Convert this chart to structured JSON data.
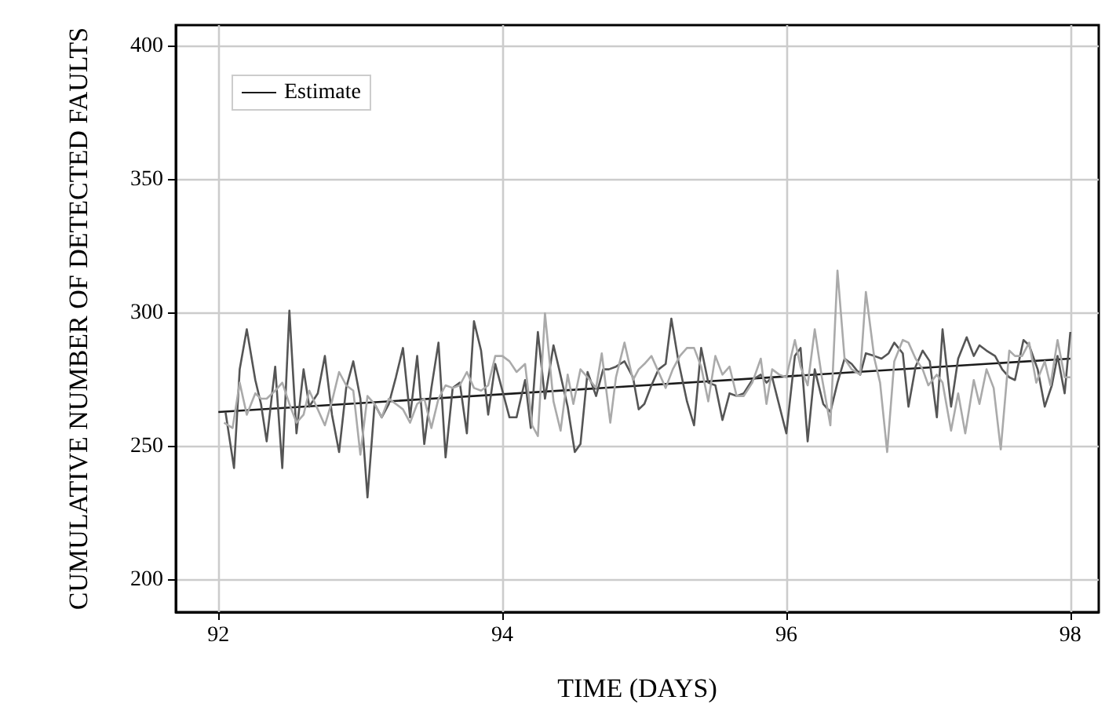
{
  "chart_data": {
    "type": "line",
    "xlabel": "TIME (DAYS)",
    "ylabel": "CUMULATIVE NUMBER OF DETECTED FAULTS",
    "xlim": [
      91.7,
      98.2
    ],
    "xticks": [
      92,
      94,
      96,
      98
    ],
    "ylim": [
      188,
      408
    ],
    "yticks": [
      200,
      250,
      300,
      350,
      400
    ],
    "grid": true,
    "legend": "top left",
    "line_style": "solid",
    "marker": "none",
    "series": [
      {
        "name": "Estimate",
        "color": "#1a1a1a",
        "x": [
          92,
          98
        ],
        "values": [
          263,
          283
        ]
      },
      {
        "color": "#555555",
        "x": [
          92.05,
          92.11,
          92.15,
          92.2,
          92.26,
          92.3,
          92.34,
          92.4,
          92.45,
          92.5,
          92.55,
          92.6,
          92.64,
          92.7,
          92.75,
          92.8,
          92.85,
          92.9,
          92.95,
          93.0,
          93.05,
          93.1,
          93.15,
          93.2,
          93.25,
          93.3,
          93.35,
          93.4,
          93.45,
          93.5,
          93.55,
          93.6,
          93.65,
          93.7,
          93.75,
          93.8,
          93.85,
          93.9,
          93.95,
          94.05,
          94.1,
          94.16,
          94.2,
          94.25,
          94.3,
          94.36,
          94.4,
          94.46,
          94.51,
          94.55,
          94.6,
          94.66,
          94.71,
          94.75,
          94.8,
          94.86,
          94.92,
          94.96,
          95.0,
          95.05,
          95.1,
          95.15,
          95.19,
          95.24,
          95.3,
          95.35,
          95.4,
          95.45,
          95.5,
          95.55,
          95.6,
          95.65,
          95.7,
          95.76,
          95.82,
          95.86,
          95.9,
          96.0,
          96.06,
          96.1,
          96.15,
          96.2,
          96.26,
          96.31,
          96.36,
          96.41,
          96.46,
          96.52,
          96.56,
          96.62,
          96.67,
          96.72,
          96.76,
          96.82,
          96.86,
          96.91,
          96.96,
          97.01,
          97.06,
          97.1,
          97.16,
          97.21,
          97.27,
          97.32,
          97.36,
          97.41,
          97.47,
          97.52,
          97.57,
          97.61,
          97.67,
          97.71,
          97.77,
          97.82,
          97.87,
          97.91,
          97.96,
          98.0
        ],
        "values": [
          263,
          242,
          279,
          294,
          275,
          266,
          252,
          280,
          242,
          301,
          255,
          279,
          265,
          270,
          284,
          262,
          248,
          272,
          282,
          268,
          231,
          266,
          261,
          266,
          276,
          287,
          261,
          284,
          251,
          272,
          289,
          246,
          272,
          274,
          255,
          297,
          286,
          262,
          281,
          261,
          261,
          275,
          257,
          293,
          268,
          288,
          279,
          265,
          248,
          251,
          278,
          269,
          279,
          279,
          280,
          282,
          276,
          264,
          266,
          273,
          279,
          281,
          298,
          282,
          267,
          258,
          287,
          274,
          273,
          260,
          270,
          269,
          270,
          275,
          277,
          274,
          276,
          255,
          284,
          287,
          252,
          279,
          266,
          263,
          274,
          283,
          281,
          277,
          285,
          284,
          283,
          285,
          289,
          285,
          265,
          280,
          286,
          282,
          261,
          294,
          265,
          283,
          291,
          284,
          288,
          286,
          284,
          279,
          276,
          275,
          290,
          288,
          279,
          265,
          273,
          284,
          270,
          293
        ]
      },
      {
        "color": "#aaaaaa",
        "x": [
          92.04,
          92.1,
          92.15,
          92.2,
          92.26,
          92.3,
          92.34,
          92.4,
          92.45,
          92.5,
          92.55,
          92.6,
          92.64,
          92.7,
          92.75,
          92.8,
          92.85,
          92.9,
          92.95,
          93.0,
          93.05,
          93.1,
          93.15,
          93.2,
          93.25,
          93.3,
          93.35,
          93.4,
          93.45,
          93.5,
          93.55,
          93.6,
          93.65,
          93.7,
          93.75,
          93.8,
          93.85,
          93.9,
          93.95,
          94.0,
          94.05,
          94.1,
          94.16,
          94.21,
          94.25,
          94.3,
          94.36,
          94.41,
          94.46,
          94.5,
          94.55,
          94.6,
          94.66,
          94.7,
          94.76,
          94.8,
          94.86,
          94.92,
          94.96,
          95.0,
          95.05,
          95.1,
          95.15,
          95.2,
          95.25,
          95.3,
          95.35,
          95.4,
          95.45,
          95.5,
          95.55,
          95.6,
          95.65,
          95.7,
          95.76,
          95.82,
          95.86,
          95.9,
          95.95,
          96.0,
          96.06,
          96.1,
          96.15,
          96.2,
          96.25,
          96.31,
          96.36,
          96.41,
          96.46,
          96.52,
          96.56,
          96.62,
          96.66,
          96.71,
          96.76,
          96.82,
          96.86,
          96.91,
          96.96,
          97.0,
          97.06,
          97.1,
          97.16,
          97.21,
          97.26,
          97.32,
          97.36,
          97.41,
          97.46,
          97.51,
          97.57,
          97.61,
          97.66,
          97.71,
          97.76,
          97.82,
          97.86,
          97.91,
          97.96,
          98.0
        ],
        "values": [
          259,
          257,
          274,
          262,
          270,
          268,
          268,
          271,
          274,
          266,
          259,
          262,
          271,
          264,
          258,
          267,
          278,
          273,
          271,
          247,
          269,
          266,
          261,
          268,
          266,
          264,
          259,
          266,
          268,
          257,
          268,
          273,
          272,
          273,
          278,
          272,
          271,
          273,
          284,
          284,
          282,
          278,
          281,
          258,
          254,
          300,
          267,
          256,
          277,
          266,
          279,
          276,
          272,
          285,
          259,
          276,
          289,
          275,
          279,
          281,
          284,
          278,
          272,
          279,
          284,
          287,
          287,
          280,
          267,
          284,
          277,
          280,
          269,
          269,
          274,
          283,
          266,
          279,
          277,
          276,
          290,
          280,
          273,
          294,
          276,
          258,
          316,
          283,
          279,
          277,
          308,
          283,
          274,
          248,
          282,
          290,
          289,
          283,
          279,
          273,
          277,
          274,
          256,
          270,
          255,
          275,
          266,
          279,
          272,
          249,
          286,
          284,
          284,
          289,
          274,
          282,
          273,
          290,
          276,
          276
        ]
      }
    ]
  }
}
